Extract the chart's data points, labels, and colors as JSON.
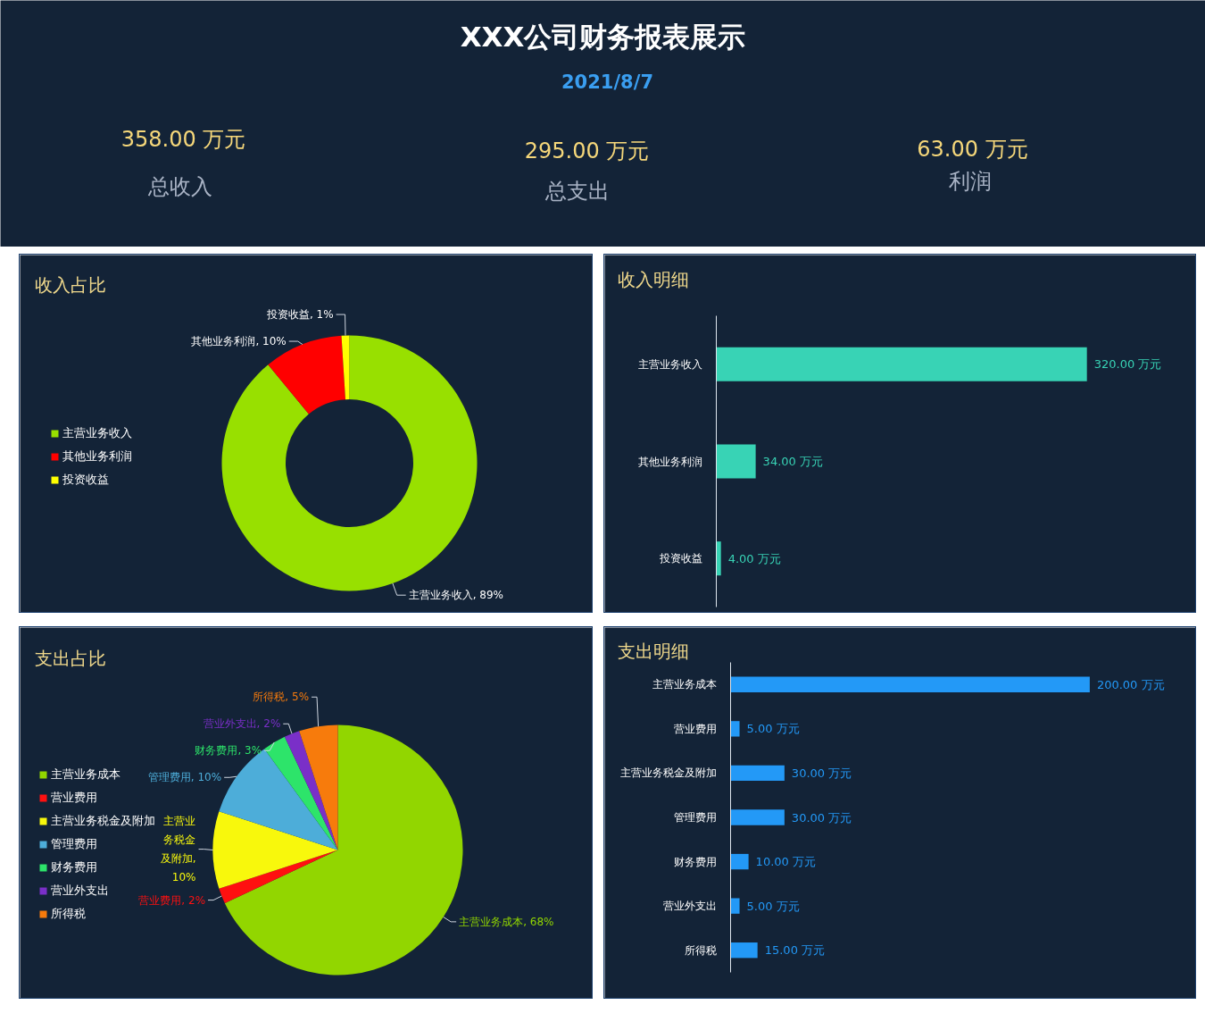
{
  "chart_data": [
    {
      "type": "other",
      "title": "XXX公司财务报表展示",
      "subtitle": "2021/8/7",
      "annotations": [
        "358.00 万元",
        "总收入",
        "295.00 万元",
        "总支出",
        "63.00 万元",
        "利润"
      ]
    },
    {
      "type": "donut",
      "title": "收入占比",
      "categories": [
        "主营业务收入",
        "其他业务利润",
        "投资收益"
      ],
      "values": [
        89,
        10,
        1
      ],
      "colors": [
        "#98e000",
        "#ff0000",
        "#ffff00"
      ],
      "value_labels": [
        "主营业务收入, 89%",
        "其他业务利润, 10%",
        "投资收益, 1%"
      ],
      "legend": "left"
    },
    {
      "type": "bar",
      "orientation": "horizontal",
      "title": "收入明细",
      "categories": [
        "主营业务收入",
        "其他业务利润",
        "投资收益"
      ],
      "values": [
        320,
        34,
        4
      ],
      "color": "#38d3b5",
      "value_labels": [
        "320.00 万元",
        "34.00 万元",
        "4.00 万元"
      ],
      "tick_labels": "y"
    },
    {
      "type": "pie",
      "title": "支出占比",
      "categories": [
        "主营业务成本",
        "营业费用",
        "主营业务税金及附加",
        "管理费用",
        "财务费用",
        "营业外支出",
        "所得税"
      ],
      "values": [
        68,
        2,
        10,
        10,
        3,
        2,
        5
      ],
      "colors": [
        "#92d600",
        "#ff1010",
        "#f8f80c",
        "#4dadd9",
        "#2de46a",
        "#7a2fc8",
        "#f77b0c"
      ],
      "value_labels": [
        "主营业务成本, 68%",
        "营业费用, 2%",
        "主营业务税金及附加, 10%",
        "管理费用, 10%",
        "财务费用, 3%",
        "营业外支出, 2%",
        "所得税, 5%"
      ],
      "legend": "left"
    },
    {
      "type": "bar",
      "orientation": "horizontal",
      "title": "支出明细",
      "categories": [
        "主营业务成本",
        "营业费用",
        "主营业务税金及附加",
        "管理费用",
        "财务费用",
        "营业外支出",
        "所得税"
      ],
      "values": [
        200,
        5,
        30,
        30,
        10,
        5,
        15
      ],
      "color": "#2399f7",
      "value_labels": [
        "200.00 万元",
        "5.00 万元",
        "30.00 万元",
        "30.00 万元",
        "10.00 万元",
        "5.00 万元",
        "15.00 万元"
      ],
      "tick_labels": "y"
    }
  ]
}
